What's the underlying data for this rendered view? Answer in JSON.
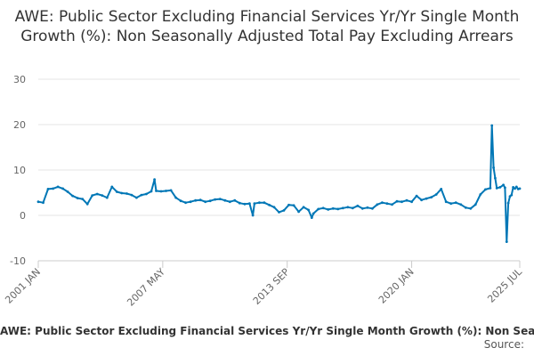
{
  "chart_data": {
    "type": "line",
    "title": "AWE: Public Sector Excluding Financial Services Yr/Yr Single Month Growth (%): Non Seasonally Adjusted Total Pay Excluding Arrears",
    "xlabel": "",
    "ylabel": "",
    "ylim": [
      -10,
      30
    ],
    "yticks": [
      -10,
      0,
      10,
      20,
      30
    ],
    "xlim": [
      "2001-01",
      "2025-07"
    ],
    "xtick_labels": [
      "2001 JAN",
      "2007 MAY",
      "2013 SEP",
      "2020 JAN",
      "2025 JUL"
    ],
    "xtick_dates": [
      "2001-01",
      "2007-05",
      "2013-09",
      "2020-01",
      "2025-07"
    ],
    "grid": true,
    "legend": "bottom",
    "series": [
      {
        "name": "AWE: Public Sector Excluding Financial Services Yr/Yr Single Month Growth (%): Non Seasonally Adjusted Total Pay Excluding Arrears",
        "color": "#0077b6",
        "points": [
          [
            "2001-01",
            3.0
          ],
          [
            "2001-04",
            2.8
          ],
          [
            "2001-07",
            5.8
          ],
          [
            "2001-10",
            5.9
          ],
          [
            "2002-01",
            6.3
          ],
          [
            "2002-04",
            5.9
          ],
          [
            "2002-07",
            5.2
          ],
          [
            "2002-10",
            4.3
          ],
          [
            "2003-01",
            3.8
          ],
          [
            "2003-04",
            3.6
          ],
          [
            "2003-07",
            2.5
          ],
          [
            "2003-10",
            4.4
          ],
          [
            "2004-01",
            4.7
          ],
          [
            "2004-04",
            4.4
          ],
          [
            "2004-07",
            3.9
          ],
          [
            "2004-10",
            6.3
          ],
          [
            "2005-01",
            5.2
          ],
          [
            "2005-04",
            4.9
          ],
          [
            "2005-07",
            4.8
          ],
          [
            "2005-10",
            4.5
          ],
          [
            "2006-01",
            3.9
          ],
          [
            "2006-04",
            4.5
          ],
          [
            "2006-07",
            4.7
          ],
          [
            "2006-10",
            5.3
          ],
          [
            "2006-12",
            7.9
          ],
          [
            "2007-01",
            5.4
          ],
          [
            "2007-04",
            5.3
          ],
          [
            "2007-07",
            5.4
          ],
          [
            "2007-10",
            5.5
          ],
          [
            "2008-01",
            3.9
          ],
          [
            "2008-04",
            3.2
          ],
          [
            "2008-07",
            2.8
          ],
          [
            "2008-10",
            3.0
          ],
          [
            "2009-01",
            3.3
          ],
          [
            "2009-04",
            3.4
          ],
          [
            "2009-07",
            3.0
          ],
          [
            "2009-10",
            3.2
          ],
          [
            "2010-01",
            3.5
          ],
          [
            "2010-04",
            3.6
          ],
          [
            "2010-07",
            3.3
          ],
          [
            "2010-10",
            3.0
          ],
          [
            "2011-01",
            3.3
          ],
          [
            "2011-04",
            2.7
          ],
          [
            "2011-07",
            2.5
          ],
          [
            "2011-10",
            2.6
          ],
          [
            "2011-12",
            0.0
          ],
          [
            "2012-01",
            2.6
          ],
          [
            "2012-04",
            2.8
          ],
          [
            "2012-07",
            2.8
          ],
          [
            "2012-10",
            2.3
          ],
          [
            "2013-01",
            1.8
          ],
          [
            "2013-04",
            0.7
          ],
          [
            "2013-07",
            1.1
          ],
          [
            "2013-10",
            2.3
          ],
          [
            "2014-01",
            2.2
          ],
          [
            "2014-04",
            0.8
          ],
          [
            "2014-07",
            1.8
          ],
          [
            "2014-10",
            1.2
          ],
          [
            "2014-12",
            -0.5
          ],
          [
            "2015-01",
            0.4
          ],
          [
            "2015-04",
            1.4
          ],
          [
            "2015-07",
            1.6
          ],
          [
            "2015-10",
            1.3
          ],
          [
            "2016-01",
            1.5
          ],
          [
            "2016-04",
            1.4
          ],
          [
            "2016-07",
            1.6
          ],
          [
            "2016-10",
            1.8
          ],
          [
            "2017-01",
            1.6
          ],
          [
            "2017-04",
            2.1
          ],
          [
            "2017-07",
            1.5
          ],
          [
            "2017-10",
            1.7
          ],
          [
            "2018-01",
            1.5
          ],
          [
            "2018-04",
            2.4
          ],
          [
            "2018-07",
            2.8
          ],
          [
            "2018-10",
            2.6
          ],
          [
            "2019-01",
            2.4
          ],
          [
            "2019-04",
            3.1
          ],
          [
            "2019-07",
            3.0
          ],
          [
            "2019-10",
            3.3
          ],
          [
            "2020-01",
            3.0
          ],
          [
            "2020-04",
            4.3
          ],
          [
            "2020-07",
            3.4
          ],
          [
            "2020-10",
            3.7
          ],
          [
            "2021-01",
            4.0
          ],
          [
            "2021-04",
            4.6
          ],
          [
            "2021-07",
            5.8
          ],
          [
            "2021-10",
            3.0
          ],
          [
            "2022-01",
            2.6
          ],
          [
            "2022-04",
            2.8
          ],
          [
            "2022-07",
            2.4
          ],
          [
            "2022-10",
            1.7
          ],
          [
            "2023-01",
            1.5
          ],
          [
            "2023-04",
            2.4
          ],
          [
            "2023-07",
            4.6
          ],
          [
            "2023-10",
            5.7
          ],
          [
            "2024-01",
            6.0
          ],
          [
            "2024-02",
            19.8
          ],
          [
            "2024-03",
            10.5
          ],
          [
            "2024-04",
            8.2
          ],
          [
            "2024-05",
            6.0
          ],
          [
            "2024-07",
            6.2
          ],
          [
            "2024-09",
            6.7
          ],
          [
            "2024-10",
            6.1
          ],
          [
            "2024-11",
            -5.8
          ],
          [
            "2024-12",
            2.7
          ],
          [
            "2025-01",
            4.2
          ],
          [
            "2025-02",
            4.5
          ],
          [
            "2025-03",
            6.2
          ],
          [
            "2025-04",
            5.9
          ],
          [
            "2025-05",
            6.3
          ],
          [
            "2025-06",
            5.8
          ],
          [
            "2025-07",
            5.9
          ]
        ]
      }
    ]
  },
  "legend_text": "AWE: Public Sector Excluding Financial Services Yr/Yr Single Month Growth (%): Non Seasonally Adjusted Total Pay Excluding Arrears",
  "source_text": "Source:"
}
